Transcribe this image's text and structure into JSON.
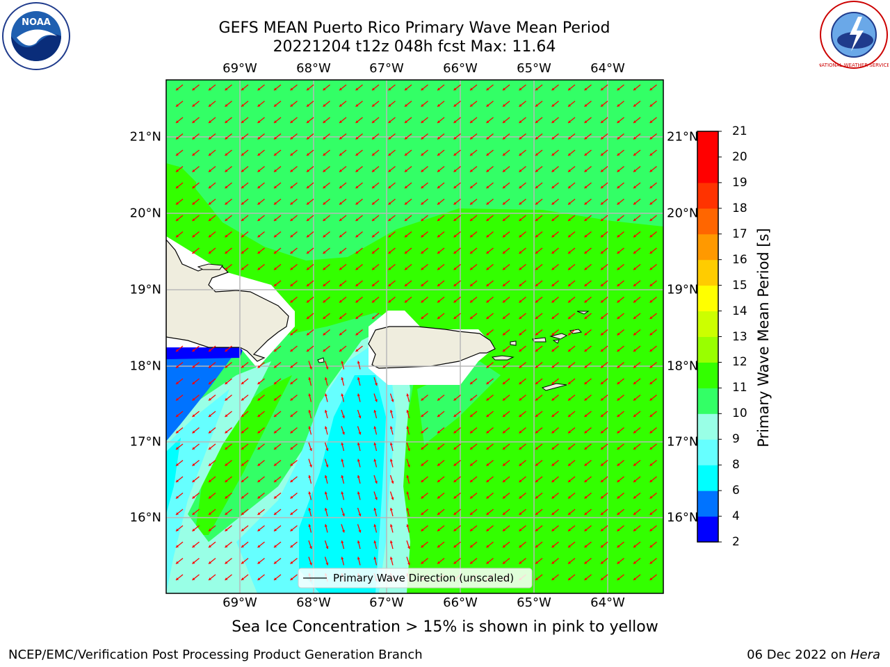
{
  "title": {
    "line1": "GEFS MEAN Puerto Rico Primary Wave Mean Period",
    "line2": "20221204 t12z 048h fcst   Max: 11.64"
  },
  "lon_labels": [
    "69°W",
    "68°W",
    "67°W",
    "66°W",
    "65°W",
    "64°W"
  ],
  "lat_labels": [
    "21°N",
    "20°N",
    "19°N",
    "18°N",
    "17°N",
    "16°N"
  ],
  "map_extent": {
    "lon": [
      -70.0,
      -63.25
    ],
    "lat": [
      15.0,
      21.75
    ]
  },
  "legend": {
    "label": "Primary Wave Direction (unscaled)"
  },
  "colorbar": {
    "label": "Primary Wave Mean Period [s]",
    "ticks": [
      "2",
      "4",
      "6",
      "8",
      "9",
      "10",
      "11",
      "12",
      "13",
      "14",
      "15",
      "16",
      "17",
      "18",
      "19",
      "20",
      "21"
    ],
    "colors": [
      "#0000ff",
      "#0073ff",
      "#00ffff",
      "#66ffff",
      "#99ffe6",
      "#33ff66",
      "#33ff00",
      "#99ff00",
      "#ccff00",
      "#ffff00",
      "#ffcc00",
      "#ff9900",
      "#ff6600",
      "#ff3300",
      "#ff0000",
      "#ff0000"
    ]
  },
  "field_colors": {
    "ocean_main": "#33ff00",
    "ocean_10_11": "#33ff66",
    "period_9_10": "#99ffe6",
    "period_8_9": "#66ffff",
    "period_6_8": "#00ffff",
    "period_4_6": "#0073ff",
    "period_2_4": "#0000ff",
    "land": "#efedde",
    "arrow": "#ff0000"
  },
  "subtitle": "Sea Ice Concentration > 15% is shown in pink to yellow",
  "footer": {
    "left": "NCEP/EMC/Verification Post Processing Product Generation Branch",
    "right_date": "06 Dec 2022 on ",
    "right_host": "Hera"
  },
  "logos": {
    "noaa": "NOAA",
    "nws": "NATIONAL WEATHER SERVICE"
  }
}
